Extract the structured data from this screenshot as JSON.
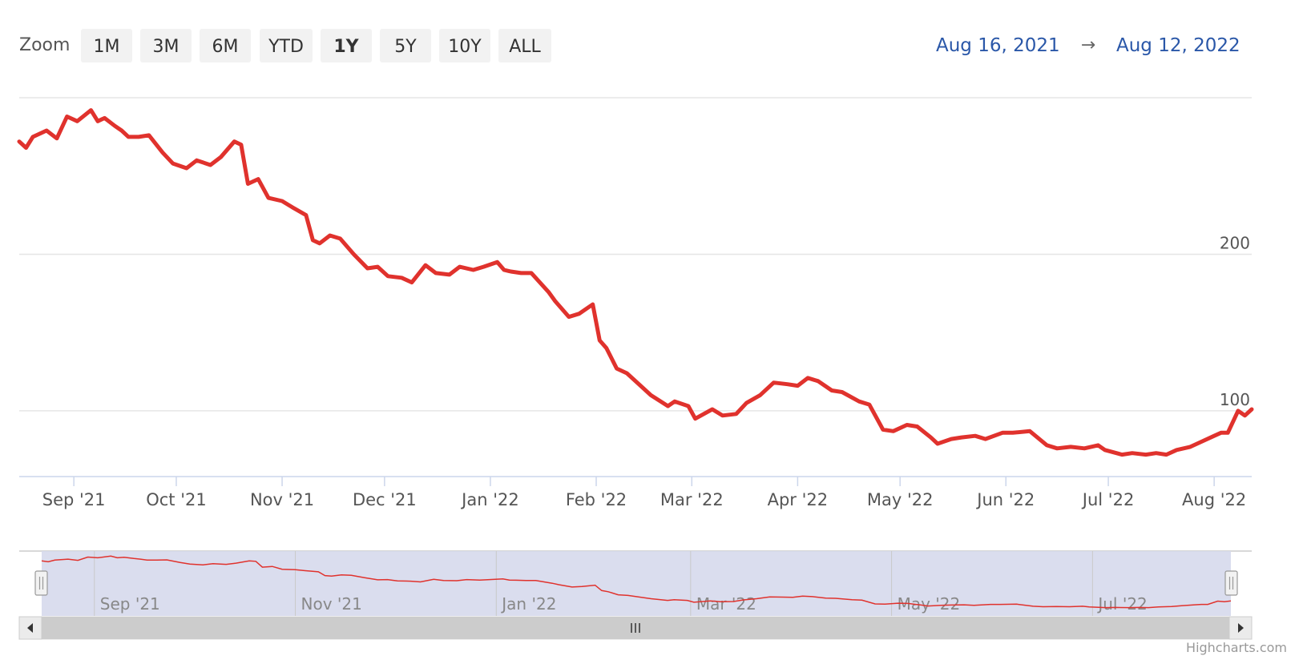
{
  "zoom": {
    "label": "Zoom",
    "buttons": [
      "1M",
      "3M",
      "6M",
      "YTD",
      "1Y",
      "5Y",
      "10Y",
      "ALL"
    ],
    "active": "1Y"
  },
  "range": {
    "from": "Aug 16, 2021",
    "arrow": "→",
    "to": "Aug 12, 2022"
  },
  "credits": "Highcharts.com",
  "colors": {
    "series": "#e0322d",
    "navigator_mask": "#d6d9ec",
    "range_text": "#2a57a8"
  },
  "chart_data": {
    "type": "line",
    "title": "",
    "xlabel": "",
    "ylabel": "",
    "x_range": [
      "2021-08-16",
      "2022-08-12"
    ],
    "ylim": [
      58,
      300
    ],
    "y_ticks": [
      {
        "value": 100,
        "label": "100"
      },
      {
        "value": 200,
        "label": "200"
      },
      {
        "value": 300,
        "label": ""
      }
    ],
    "x_ticks": [
      {
        "date": "2021-09-01",
        "label": "Sep '21"
      },
      {
        "date": "2021-10-01",
        "label": "Oct '21"
      },
      {
        "date": "2021-11-01",
        "label": "Nov '21"
      },
      {
        "date": "2021-12-01",
        "label": "Dec '21"
      },
      {
        "date": "2022-01-01",
        "label": "Jan '22"
      },
      {
        "date": "2022-02-01",
        "label": "Feb '22"
      },
      {
        "date": "2022-03-01",
        "label": "Mar '22"
      },
      {
        "date": "2022-04-01",
        "label": "Apr '22"
      },
      {
        "date": "2022-05-01",
        "label": "May '22"
      },
      {
        "date": "2022-06-01",
        "label": "Jun '22"
      },
      {
        "date": "2022-07-01",
        "label": "Jul '22"
      },
      {
        "date": "2022-08-01",
        "label": "Aug '22"
      }
    ],
    "navigator_ticks": [
      {
        "date": "2021-09-01",
        "label": "Sep '21"
      },
      {
        "date": "2021-11-01",
        "label": "Nov '21"
      },
      {
        "date": "2022-01-01",
        "label": "Jan '22"
      },
      {
        "date": "2022-03-01",
        "label": "Mar '22"
      },
      {
        "date": "2022-05-01",
        "label": "May '22"
      },
      {
        "date": "2022-07-01",
        "label": "Jul '22"
      }
    ],
    "grid": true,
    "legend": "none",
    "series": [
      {
        "name": "",
        "points": [
          [
            "2021-08-16",
            272
          ],
          [
            "2021-08-18",
            268
          ],
          [
            "2021-08-20",
            275
          ],
          [
            "2021-08-24",
            279
          ],
          [
            "2021-08-27",
            274
          ],
          [
            "2021-08-30",
            288
          ],
          [
            "2021-09-02",
            285
          ],
          [
            "2021-09-06",
            292
          ],
          [
            "2021-09-08",
            285
          ],
          [
            "2021-09-10",
            287
          ],
          [
            "2021-09-13",
            282
          ],
          [
            "2021-09-15",
            279
          ],
          [
            "2021-09-17",
            275
          ],
          [
            "2021-09-20",
            275
          ],
          [
            "2021-09-23",
            276
          ],
          [
            "2021-09-27",
            265
          ],
          [
            "2021-09-30",
            258
          ],
          [
            "2021-10-04",
            255
          ],
          [
            "2021-10-07",
            260
          ],
          [
            "2021-10-11",
            257
          ],
          [
            "2021-10-14",
            262
          ],
          [
            "2021-10-18",
            272
          ],
          [
            "2021-10-20",
            270
          ],
          [
            "2021-10-22",
            245
          ],
          [
            "2021-10-25",
            248
          ],
          [
            "2021-10-28",
            236
          ],
          [
            "2021-11-01",
            234
          ],
          [
            "2021-11-04",
            230
          ],
          [
            "2021-11-08",
            225
          ],
          [
            "2021-11-10",
            209
          ],
          [
            "2021-11-12",
            207
          ],
          [
            "2021-11-15",
            212
          ],
          [
            "2021-11-18",
            210
          ],
          [
            "2021-11-22",
            200
          ],
          [
            "2021-11-26",
            191
          ],
          [
            "2021-11-29",
            192
          ],
          [
            "2021-12-02",
            186
          ],
          [
            "2021-12-06",
            185
          ],
          [
            "2021-12-09",
            182
          ],
          [
            "2021-12-13",
            193
          ],
          [
            "2021-12-16",
            188
          ],
          [
            "2021-12-20",
            187
          ],
          [
            "2021-12-23",
            192
          ],
          [
            "2021-12-27",
            190
          ],
          [
            "2021-12-30",
            192
          ],
          [
            "2022-01-03",
            195
          ],
          [
            "2022-01-05",
            190
          ],
          [
            "2022-01-07",
            189
          ],
          [
            "2022-01-10",
            188
          ],
          [
            "2022-01-13",
            188
          ],
          [
            "2022-01-18",
            176
          ],
          [
            "2022-01-20",
            170
          ],
          [
            "2022-01-24",
            160
          ],
          [
            "2022-01-27",
            162
          ],
          [
            "2022-01-31",
            168
          ],
          [
            "2022-02-02",
            145
          ],
          [
            "2022-02-04",
            140
          ],
          [
            "2022-02-07",
            127
          ],
          [
            "2022-02-10",
            124
          ],
          [
            "2022-02-14",
            116
          ],
          [
            "2022-02-17",
            110
          ],
          [
            "2022-02-22",
            103
          ],
          [
            "2022-02-24",
            106
          ],
          [
            "2022-02-28",
            103
          ],
          [
            "2022-03-02",
            95
          ],
          [
            "2022-03-07",
            101
          ],
          [
            "2022-03-10",
            97
          ],
          [
            "2022-03-14",
            98
          ],
          [
            "2022-03-17",
            105
          ],
          [
            "2022-03-21",
            110
          ],
          [
            "2022-03-25",
            118
          ],
          [
            "2022-03-29",
            117
          ],
          [
            "2022-04-01",
            116
          ],
          [
            "2022-04-04",
            121
          ],
          [
            "2022-04-07",
            119
          ],
          [
            "2022-04-11",
            113
          ],
          [
            "2022-04-14",
            112
          ],
          [
            "2022-04-19",
            106
          ],
          [
            "2022-04-22",
            104
          ],
          [
            "2022-04-26",
            88
          ],
          [
            "2022-04-29",
            87
          ],
          [
            "2022-05-03",
            91
          ],
          [
            "2022-05-06",
            90
          ],
          [
            "2022-05-10",
            83
          ],
          [
            "2022-05-12",
            79
          ],
          [
            "2022-05-16",
            82
          ],
          [
            "2022-05-19",
            83
          ],
          [
            "2022-05-23",
            84
          ],
          [
            "2022-05-26",
            82
          ],
          [
            "2022-05-31",
            86
          ],
          [
            "2022-06-03",
            86
          ],
          [
            "2022-06-08",
            87
          ],
          [
            "2022-06-13",
            78
          ],
          [
            "2022-06-16",
            76
          ],
          [
            "2022-06-20",
            77
          ],
          [
            "2022-06-24",
            76
          ],
          [
            "2022-06-28",
            78
          ],
          [
            "2022-06-30",
            75
          ],
          [
            "2022-07-05",
            72
          ],
          [
            "2022-07-08",
            73
          ],
          [
            "2022-07-12",
            72
          ],
          [
            "2022-07-15",
            73
          ],
          [
            "2022-07-18",
            72
          ],
          [
            "2022-07-21",
            75
          ],
          [
            "2022-07-25",
            77
          ],
          [
            "2022-07-28",
            80
          ],
          [
            "2022-08-01",
            84
          ],
          [
            "2022-08-03",
            86
          ],
          [
            "2022-08-05",
            86
          ],
          [
            "2022-08-08",
            100
          ],
          [
            "2022-08-10",
            97
          ],
          [
            "2022-08-12",
            101
          ]
        ]
      }
    ]
  }
}
